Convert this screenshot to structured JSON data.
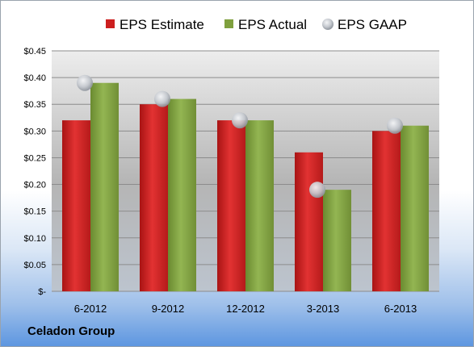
{
  "company": "Celadon Group",
  "colors": {
    "estimate": "#cc1f1f",
    "actual": "#7fa03e",
    "gaap": "#b8bcc2"
  },
  "chart_data": {
    "type": "bar",
    "categories": [
      "6-2012",
      "9-2012",
      "12-2012",
      "3-2013",
      "6-2013"
    ],
    "series": [
      {
        "name": "EPS Estimate",
        "type": "bar",
        "values": [
          0.32,
          0.35,
          0.32,
          0.26,
          0.3
        ]
      },
      {
        "name": "EPS Actual",
        "type": "bar",
        "values": [
          0.39,
          0.36,
          0.32,
          0.19,
          0.31
        ]
      },
      {
        "name": "EPS GAAP",
        "type": "scatter",
        "values": [
          0.39,
          0.36,
          0.32,
          0.19,
          0.31
        ]
      }
    ],
    "ylim": [
      0,
      0.45
    ],
    "yticks": [
      0,
      0.05,
      0.1,
      0.15,
      0.2,
      0.25,
      0.3,
      0.35,
      0.4,
      0.45
    ],
    "ytick_labels": [
      "$-",
      "$0.05",
      "$0.10",
      "$0.15",
      "$0.20",
      "$0.25",
      "$0.30",
      "$0.35",
      "$0.40",
      "$0.45"
    ],
    "legend_position": "top",
    "grid": true
  }
}
